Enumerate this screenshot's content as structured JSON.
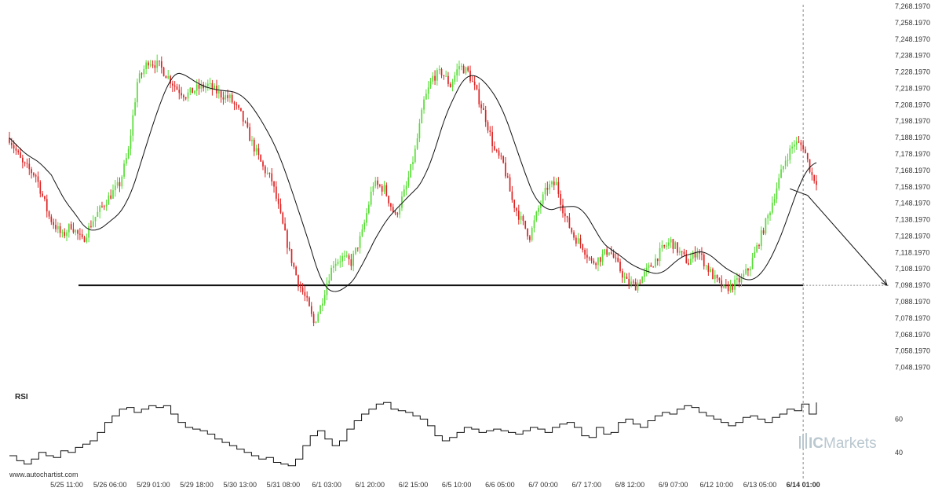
{
  "chart_data": [
    {
      "type": "candlestick",
      "title": "",
      "ylim": [
        7043.197,
        7268.197
      ],
      "y_ticks": [
        "7,268.1970",
        "7,258.1970",
        "7,248.1970",
        "7,238.1970",
        "7,228.1970",
        "7,218.1970",
        "7,208.1970",
        "7,198.1970",
        "7,188.1970",
        "7,178.1970",
        "7,168.1970",
        "7,158.1970",
        "7,148.1970",
        "7,138.1970",
        "7,128.1970",
        "7,118.1970",
        "7,108.1970",
        "7,098.1970",
        "7,088.1970",
        "7,078.1970",
        "7,068.1970",
        "7,058.1970",
        "7,048.1970"
      ],
      "x_ticks": [
        "5/25 11:00",
        "5/26 06:00",
        "5/29 01:00",
        "5/29 18:00",
        "5/30 13:00",
        "5/31 08:00",
        "6/1 03:00",
        "6/1 20:00",
        "6/2 15:00",
        "6/5 10:00",
        "6/6 05:00",
        "6/7 00:00",
        "6/7 17:00",
        "6/8 12:00",
        "6/9 07:00",
        "6/12 10:00",
        "6/13 05:00",
        "6/14 01:00"
      ],
      "highlighted_x_tick": "6/14 01:00",
      "up_color": "#55dd33",
      "down_color": "#dd2222",
      "close_path": [
        [
          0,
          7188
        ],
        [
          6,
          7172
        ],
        [
          12,
          7165
        ],
        [
          18,
          7140
        ],
        [
          24,
          7128
        ],
        [
          28,
          7135
        ],
        [
          33,
          7125
        ],
        [
          38,
          7138
        ],
        [
          44,
          7150
        ],
        [
          50,
          7160
        ],
        [
          54,
          7180
        ],
        [
          58,
          7222
        ],
        [
          63,
          7235
        ],
        [
          68,
          7232
        ],
        [
          72,
          7225
        ],
        [
          76,
          7218
        ],
        [
          80,
          7214
        ],
        [
          85,
          7218
        ],
        [
          90,
          7220
        ],
        [
          95,
          7215
        ],
        [
          100,
          7212
        ],
        [
          105,
          7202
        ],
        [
          110,
          7185
        ],
        [
          115,
          7170
        ],
        [
          119,
          7162
        ],
        [
          123,
          7140
        ],
        [
          127,
          7118
        ],
        [
          131,
          7100
        ],
        [
          135,
          7088
        ],
        [
          138,
          7075
        ],
        [
          141,
          7085
        ],
        [
          144,
          7100
        ],
        [
          147,
          7112
        ],
        [
          151,
          7115
        ],
        [
          155,
          7112
        ],
        [
          160,
          7130
        ],
        [
          165,
          7160
        ],
        [
          170,
          7157
        ],
        [
          175,
          7140
        ],
        [
          180,
          7158
        ],
        [
          184,
          7180
        ],
        [
          188,
          7210
        ],
        [
          192,
          7225
        ],
        [
          196,
          7228
        ],
        [
          200,
          7220
        ],
        [
          204,
          7232
        ],
        [
          208,
          7228
        ],
        [
          212,
          7215
        ],
        [
          216,
          7200
        ],
        [
          220,
          7180
        ],
        [
          224,
          7172
        ],
        [
          228,
          7150
        ],
        [
          232,
          7138
        ],
        [
          236,
          7128
        ],
        [
          240,
          7145
        ],
        [
          244,
          7158
        ],
        [
          248,
          7160
        ],
        [
          252,
          7140
        ],
        [
          256,
          7128
        ],
        [
          260,
          7122
        ],
        [
          264,
          7112
        ],
        [
          268,
          7115
        ],
        [
          272,
          7120
        ],
        [
          276,
          7110
        ],
        [
          280,
          7100
        ],
        [
          284,
          7098
        ],
        [
          288,
          7105
        ],
        [
          292,
          7112
        ],
        [
          296,
          7120
        ],
        [
          300,
          7125
        ],
        [
          304,
          7118
        ],
        [
          308,
          7112
        ],
        [
          312,
          7120
        ],
        [
          316,
          7110
        ],
        [
          320,
          7102
        ],
        [
          324,
          7096
        ],
        [
          328,
          7098
        ],
        [
          332,
          7102
        ],
        [
          336,
          7110
        ],
        [
          340,
          7125
        ],
        [
          344,
          7140
        ],
        [
          348,
          7158
        ],
        [
          352,
          7175
        ],
        [
          356,
          7185
        ],
        [
          360,
          7183
        ],
        [
          364,
          7165
        ],
        [
          366,
          7162
        ]
      ],
      "pattern_end_index": 360,
      "support_level": 7098.197,
      "projection": {
        "from_index": 362,
        "from_value": 7153,
        "to_value": 7098.197
      }
    },
    {
      "type": "line",
      "title": "RSI",
      "ylim": [
        30,
        80
      ],
      "y_ticks": [
        "60",
        "40"
      ],
      "series": [
        {
          "values": [
            38,
            35,
            33,
            36,
            40,
            38,
            37,
            41,
            40,
            43,
            45,
            47,
            52,
            58,
            62,
            66,
            67,
            64,
            66,
            68,
            67,
            68,
            63,
            58,
            55,
            54,
            53,
            51,
            48,
            46,
            44,
            42,
            40,
            38,
            36,
            37,
            34,
            33,
            32,
            36,
            44,
            50,
            53,
            48,
            44,
            47,
            54,
            59,
            63,
            66,
            69,
            70,
            66,
            65,
            64,
            62,
            60,
            56,
            50,
            47,
            49,
            52,
            55,
            54,
            52,
            53,
            54,
            53,
            52,
            51,
            53,
            55,
            54,
            52,
            55,
            57,
            58,
            55,
            50,
            49,
            55,
            51,
            52,
            58,
            60,
            57,
            55,
            59,
            62,
            64,
            63,
            66,
            68,
            67,
            64,
            62,
            60,
            58,
            56,
            58,
            61,
            62,
            60,
            58,
            61,
            63,
            66,
            65,
            69,
            63,
            70
          ]
        }
      ]
    }
  ],
  "footer": {
    "source": "www.autochartist.com"
  },
  "logo": {
    "brand_a": "IC",
    "brand_b": "Markets"
  }
}
